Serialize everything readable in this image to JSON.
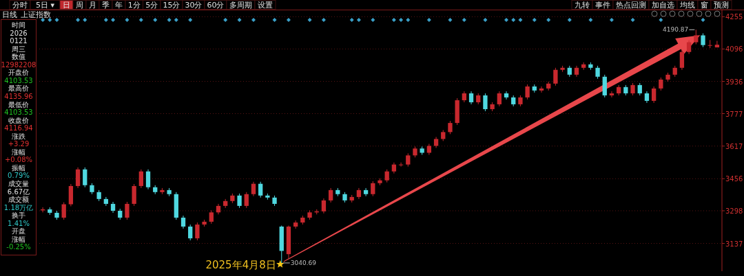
{
  "chart_data": [
    {
      "type": "other",
      "annotations": [
        "分时",
        "5日 ▾",
        "日",
        "周",
        "月",
        "季",
        "年",
        "1分",
        "5分",
        "15分",
        "30分",
        "60分",
        "多周期",
        "设置"
      ],
      "colors": [
        "#000000",
        "#000000",
        "#c0282d",
        "#000000",
        "#000000",
        "#000000",
        "#000000",
        "#000000",
        "#000000",
        "#000000",
        "#000000",
        "#000000",
        "#000000",
        "#000000"
      ]
    },
    {
      "type": "other",
      "annotations": [
        "九转",
        "事件",
        "热点回测",
        "加自选",
        "均线",
        "窗",
        "预测"
      ],
      "colors": [
        "#000000",
        "#000000",
        "#000000",
        "#000000",
        "#000000",
        "#000000",
        "#000000"
      ]
    },
    {
      "type": "other",
      "annotations": [
        "时间",
        "2026",
        "0121",
        "周三",
        "数值",
        "12982208",
        "开盘价",
        "4103.53",
        "最高价",
        "4135.96",
        "最低价",
        "4103.53",
        "收盘价",
        "4116.94",
        "涨跌",
        "+3.29",
        "涨幅",
        "+0.08%",
        "振幅",
        "0.79%",
        "成交量",
        "6.67亿",
        "成交额",
        "1.18万亿",
        "换手",
        "1.41%",
        "开盘",
        "涨幅",
        "-0.25%"
      ],
      "colors": [
        "#e0e0e0",
        "#e0e0e0",
        "#e0e0e0",
        "#e0e0e0",
        "#e0e0e0",
        "#e03030",
        "#e0e0e0",
        "#20c020",
        "#e0e0e0",
        "#e03030",
        "#e0e0e0",
        "#20c020",
        "#e0e0e0",
        "#e03030",
        "#e0e0e0",
        "#e03030",
        "#e0e0e0",
        "#e03030",
        "#e0e0e0",
        "#30c8c8",
        "#e0e0e0",
        "#e0e0e0",
        "#e0e0e0",
        "#30c8c8",
        "#e0e0e0",
        "#30c8c8",
        "#e0e0e0",
        "#e0e0e0",
        "#20c020"
      ]
    },
    {
      "type": "candlestick",
      "title": "上证指数",
      "subtitle": "日线",
      "categories": [
        null,
        null,
        null,
        null,
        null,
        null,
        null,
        null,
        null,
        null,
        null,
        null,
        null,
        null,
        null,
        null,
        null,
        null,
        null,
        null,
        null,
        null,
        null,
        null,
        null,
        null,
        null,
        null,
        null,
        null,
        null,
        null,
        null,
        null,
        null,
        null,
        null,
        null,
        null,
        null,
        null,
        null,
        null,
        null,
        null,
        null,
        null,
        null,
        null,
        null,
        null,
        null,
        null,
        null,
        null,
        null,
        null,
        null,
        null,
        null,
        null,
        null,
        null,
        null,
        null,
        null,
        null,
        null,
        null,
        null,
        null,
        null,
        null,
        null,
        null,
        null,
        null,
        null,
        null,
        null,
        null,
        null,
        null,
        null,
        null,
        null,
        null,
        null,
        null,
        null,
        null,
        null,
        null,
        null,
        null,
        null,
        null
      ],
      "ohlc": [
        [
          3300,
          3315,
          3290,
          3305
        ],
        [
          3305,
          3315,
          3278,
          3288
        ],
        [
          3288,
          3298,
          3254,
          3264
        ],
        [
          3264,
          3340,
          3254,
          3330
        ],
        [
          3330,
          3430,
          3320,
          3420
        ],
        [
          3420,
          3512,
          3410,
          3502
        ],
        [
          3502,
          3512,
          3414,
          3424
        ],
        [
          3424,
          3434,
          3380,
          3390
        ],
        [
          3390,
          3400,
          3346,
          3356
        ],
        [
          3356,
          3366,
          3322,
          3332
        ],
        [
          3332,
          3342,
          3288,
          3298
        ],
        [
          3298,
          3308,
          3254,
          3264
        ],
        [
          3264,
          3342,
          3254,
          3332
        ],
        [
          3332,
          3430,
          3322,
          3420
        ],
        [
          3420,
          3502,
          3410,
          3492
        ],
        [
          3492,
          3502,
          3404,
          3414
        ],
        [
          3414,
          3424,
          3380,
          3390
        ],
        [
          3390,
          3410,
          3380,
          3400
        ],
        [
          3400,
          3410,
          3370,
          3380
        ],
        [
          3380,
          3390,
          3254,
          3264
        ],
        [
          3264,
          3274,
          3210,
          3220
        ],
        [
          3220,
          3230,
          3152,
          3162
        ],
        [
          3162,
          3240,
          3152,
          3230
        ],
        [
          3230,
          3254,
          3220,
          3244
        ],
        [
          3244,
          3300,
          3234,
          3290
        ],
        [
          3290,
          3332,
          3280,
          3322
        ],
        [
          3322,
          3356,
          3312,
          3346
        ],
        [
          3346,
          3383,
          3336,
          3373
        ],
        [
          3373,
          3383,
          3312,
          3322
        ],
        [
          3322,
          3390,
          3312,
          3380
        ],
        [
          3380,
          3441,
          3370,
          3431
        ],
        [
          3431,
          3441,
          3363,
          3373
        ],
        [
          3373,
          3383,
          3353,
          3363
        ],
        [
          3363,
          3373,
          3322,
          3332
        ],
        [
          3220,
          3225,
          3040.69,
          3100
        ],
        [
          3084,
          3225,
          3062,
          3220
        ],
        [
          3220,
          3250,
          3210,
          3240
        ],
        [
          3240,
          3274,
          3230,
          3264
        ],
        [
          3264,
          3300,
          3254,
          3290
        ],
        [
          3290,
          3305,
          3280,
          3295
        ],
        [
          3295,
          3359,
          3285,
          3349
        ],
        [
          3349,
          3410,
          3339,
          3400
        ],
        [
          3400,
          3410,
          3370,
          3380
        ],
        [
          3380,
          3390,
          3339,
          3349
        ],
        [
          3349,
          3376,
          3339,
          3366
        ],
        [
          3366,
          3410,
          3356,
          3400
        ],
        [
          3400,
          3410,
          3370,
          3380
        ],
        [
          3380,
          3444,
          3370,
          3434
        ],
        [
          3434,
          3458,
          3424,
          3448
        ],
        [
          3448,
          3502,
          3438,
          3492
        ],
        [
          3492,
          3536,
          3482,
          3526
        ],
        [
          3526,
          3536,
          3516,
          3526
        ],
        [
          3526,
          3581,
          3516,
          3571
        ],
        [
          3571,
          3615,
          3561,
          3605
        ],
        [
          3605,
          3615,
          3574,
          3584
        ],
        [
          3584,
          3628,
          3574,
          3618
        ],
        [
          3618,
          3662,
          3608,
          3652
        ],
        [
          3652,
          3696,
          3642,
          3686
        ],
        [
          3686,
          3741,
          3676,
          3731
        ],
        [
          3731,
          3853,
          3721,
          3843
        ],
        [
          3843,
          3887,
          3833,
          3877
        ],
        [
          3877,
          3887,
          3823,
          3833
        ],
        [
          3833,
          3877,
          3823,
          3867
        ],
        [
          3867,
          3877,
          3789,
          3799
        ],
        [
          3799,
          3833,
          3789,
          3823
        ],
        [
          3823,
          3887,
          3813,
          3877
        ],
        [
          3877,
          3887,
          3847,
          3857
        ],
        [
          3857,
          3867,
          3813,
          3823
        ],
        [
          3823,
          3867,
          3813,
          3857
        ],
        [
          3857,
          3921,
          3847,
          3911
        ],
        [
          3911,
          3921,
          3881,
          3891
        ],
        [
          3891,
          3911,
          3881,
          3901
        ],
        [
          3901,
          3935,
          3891,
          3925
        ],
        [
          3925,
          4003,
          3915,
          3993
        ],
        [
          3993,
          4013,
          3983,
          4003
        ],
        [
          4003,
          4013,
          3959,
          3969
        ],
        [
          3969,
          4013,
          3959,
          4003
        ],
        [
          4003,
          4030,
          3993,
          4020
        ],
        [
          4020,
          4030,
          3993,
          4003
        ],
        [
          4003,
          4013,
          3949,
          3959
        ],
        [
          3959,
          3969,
          3857,
          3867
        ],
        [
          3867,
          3887,
          3857,
          3877
        ],
        [
          3877,
          3918,
          3867,
          3908
        ],
        [
          3908,
          3918,
          3867,
          3877
        ],
        [
          3877,
          3928,
          3867,
          3918
        ],
        [
          3918,
          3928,
          3867,
          3877
        ],
        [
          3877,
          3887,
          3830,
          3840
        ],
        [
          3840,
          3911,
          3830,
          3901
        ],
        [
          3901,
          3955,
          3891,
          3945
        ],
        [
          3945,
          3979,
          3935,
          3969
        ],
        [
          3969,
          4013,
          3959,
          4003
        ],
        [
          4003,
          4091,
          3993,
          4081
        ],
        [
          4081,
          4139,
          4071,
          4129
        ],
        [
          4129,
          4190.87,
          4119,
          4163
        ],
        [
          4163,
          4173,
          4105,
          4115
        ],
        [
          4115,
          4140,
          4100,
          4115
        ],
        [
          4103.53,
          4135.96,
          4103.53,
          4116.94
        ]
      ],
      "colors": [
        "#c8282e",
        "#4fd8e0",
        "#4fd8e0",
        "#c8282e",
        "#c8282e",
        "#c8282e",
        "#4fd8e0",
        "#4fd8e0",
        "#4fd8e0",
        "#4fd8e0",
        "#4fd8e0",
        "#4fd8e0",
        "#c8282e",
        "#c8282e",
        "#c8282e",
        "#4fd8e0",
        "#4fd8e0",
        "#c8282e",
        "#4fd8e0",
        "#4fd8e0",
        "#4fd8e0",
        "#4fd8e0",
        "#c8282e",
        "#c8282e",
        "#c8282e",
        "#c8282e",
        "#c8282e",
        "#c8282e",
        "#4fd8e0",
        "#c8282e",
        "#c8282e",
        "#4fd8e0",
        "#4fd8e0",
        "#4fd8e0",
        "#4fd8e0",
        "#c8282e",
        "#c8282e",
        "#c8282e",
        "#c8282e",
        "#c8282e",
        "#c8282e",
        "#c8282e",
        "#4fd8e0",
        "#4fd8e0",
        "#c8282e",
        "#c8282e",
        "#4fd8e0",
        "#c8282e",
        "#c8282e",
        "#c8282e",
        "#c8282e",
        "#c8282e",
        "#c8282e",
        "#c8282e",
        "#4fd8e0",
        "#c8282e",
        "#c8282e",
        "#c8282e",
        "#c8282e",
        "#c8282e",
        "#c8282e",
        "#4fd8e0",
        "#c8282e",
        "#4fd8e0",
        "#c8282e",
        "#c8282e",
        "#4fd8e0",
        "#4fd8e0",
        "#c8282e",
        "#c8282e",
        "#4fd8e0",
        "#c8282e",
        "#c8282e",
        "#c8282e",
        "#c8282e",
        "#4fd8e0",
        "#c8282e",
        "#c8282e",
        "#4fd8e0",
        "#4fd8e0",
        "#4fd8e0",
        "#c8282e",
        "#c8282e",
        "#4fd8e0",
        "#c8282e",
        "#4fd8e0",
        "#4fd8e0",
        "#c8282e",
        "#c8282e",
        "#c8282e",
        "#c8282e",
        "#c8282e",
        "#c8282e",
        "#c8282e",
        "#4fd8e0",
        "#c8282e",
        "#c8282e"
      ],
      "ylim": [
        3000,
        4290
      ],
      "yticks": [
        3137,
        3298,
        3456,
        3617,
        3777,
        3936,
        4096,
        4255
      ],
      "grid": "y",
      "annotations": [
        "2025年4月8日",
        "3040.69",
        "4190.87"
      ]
    }
  ]
}
